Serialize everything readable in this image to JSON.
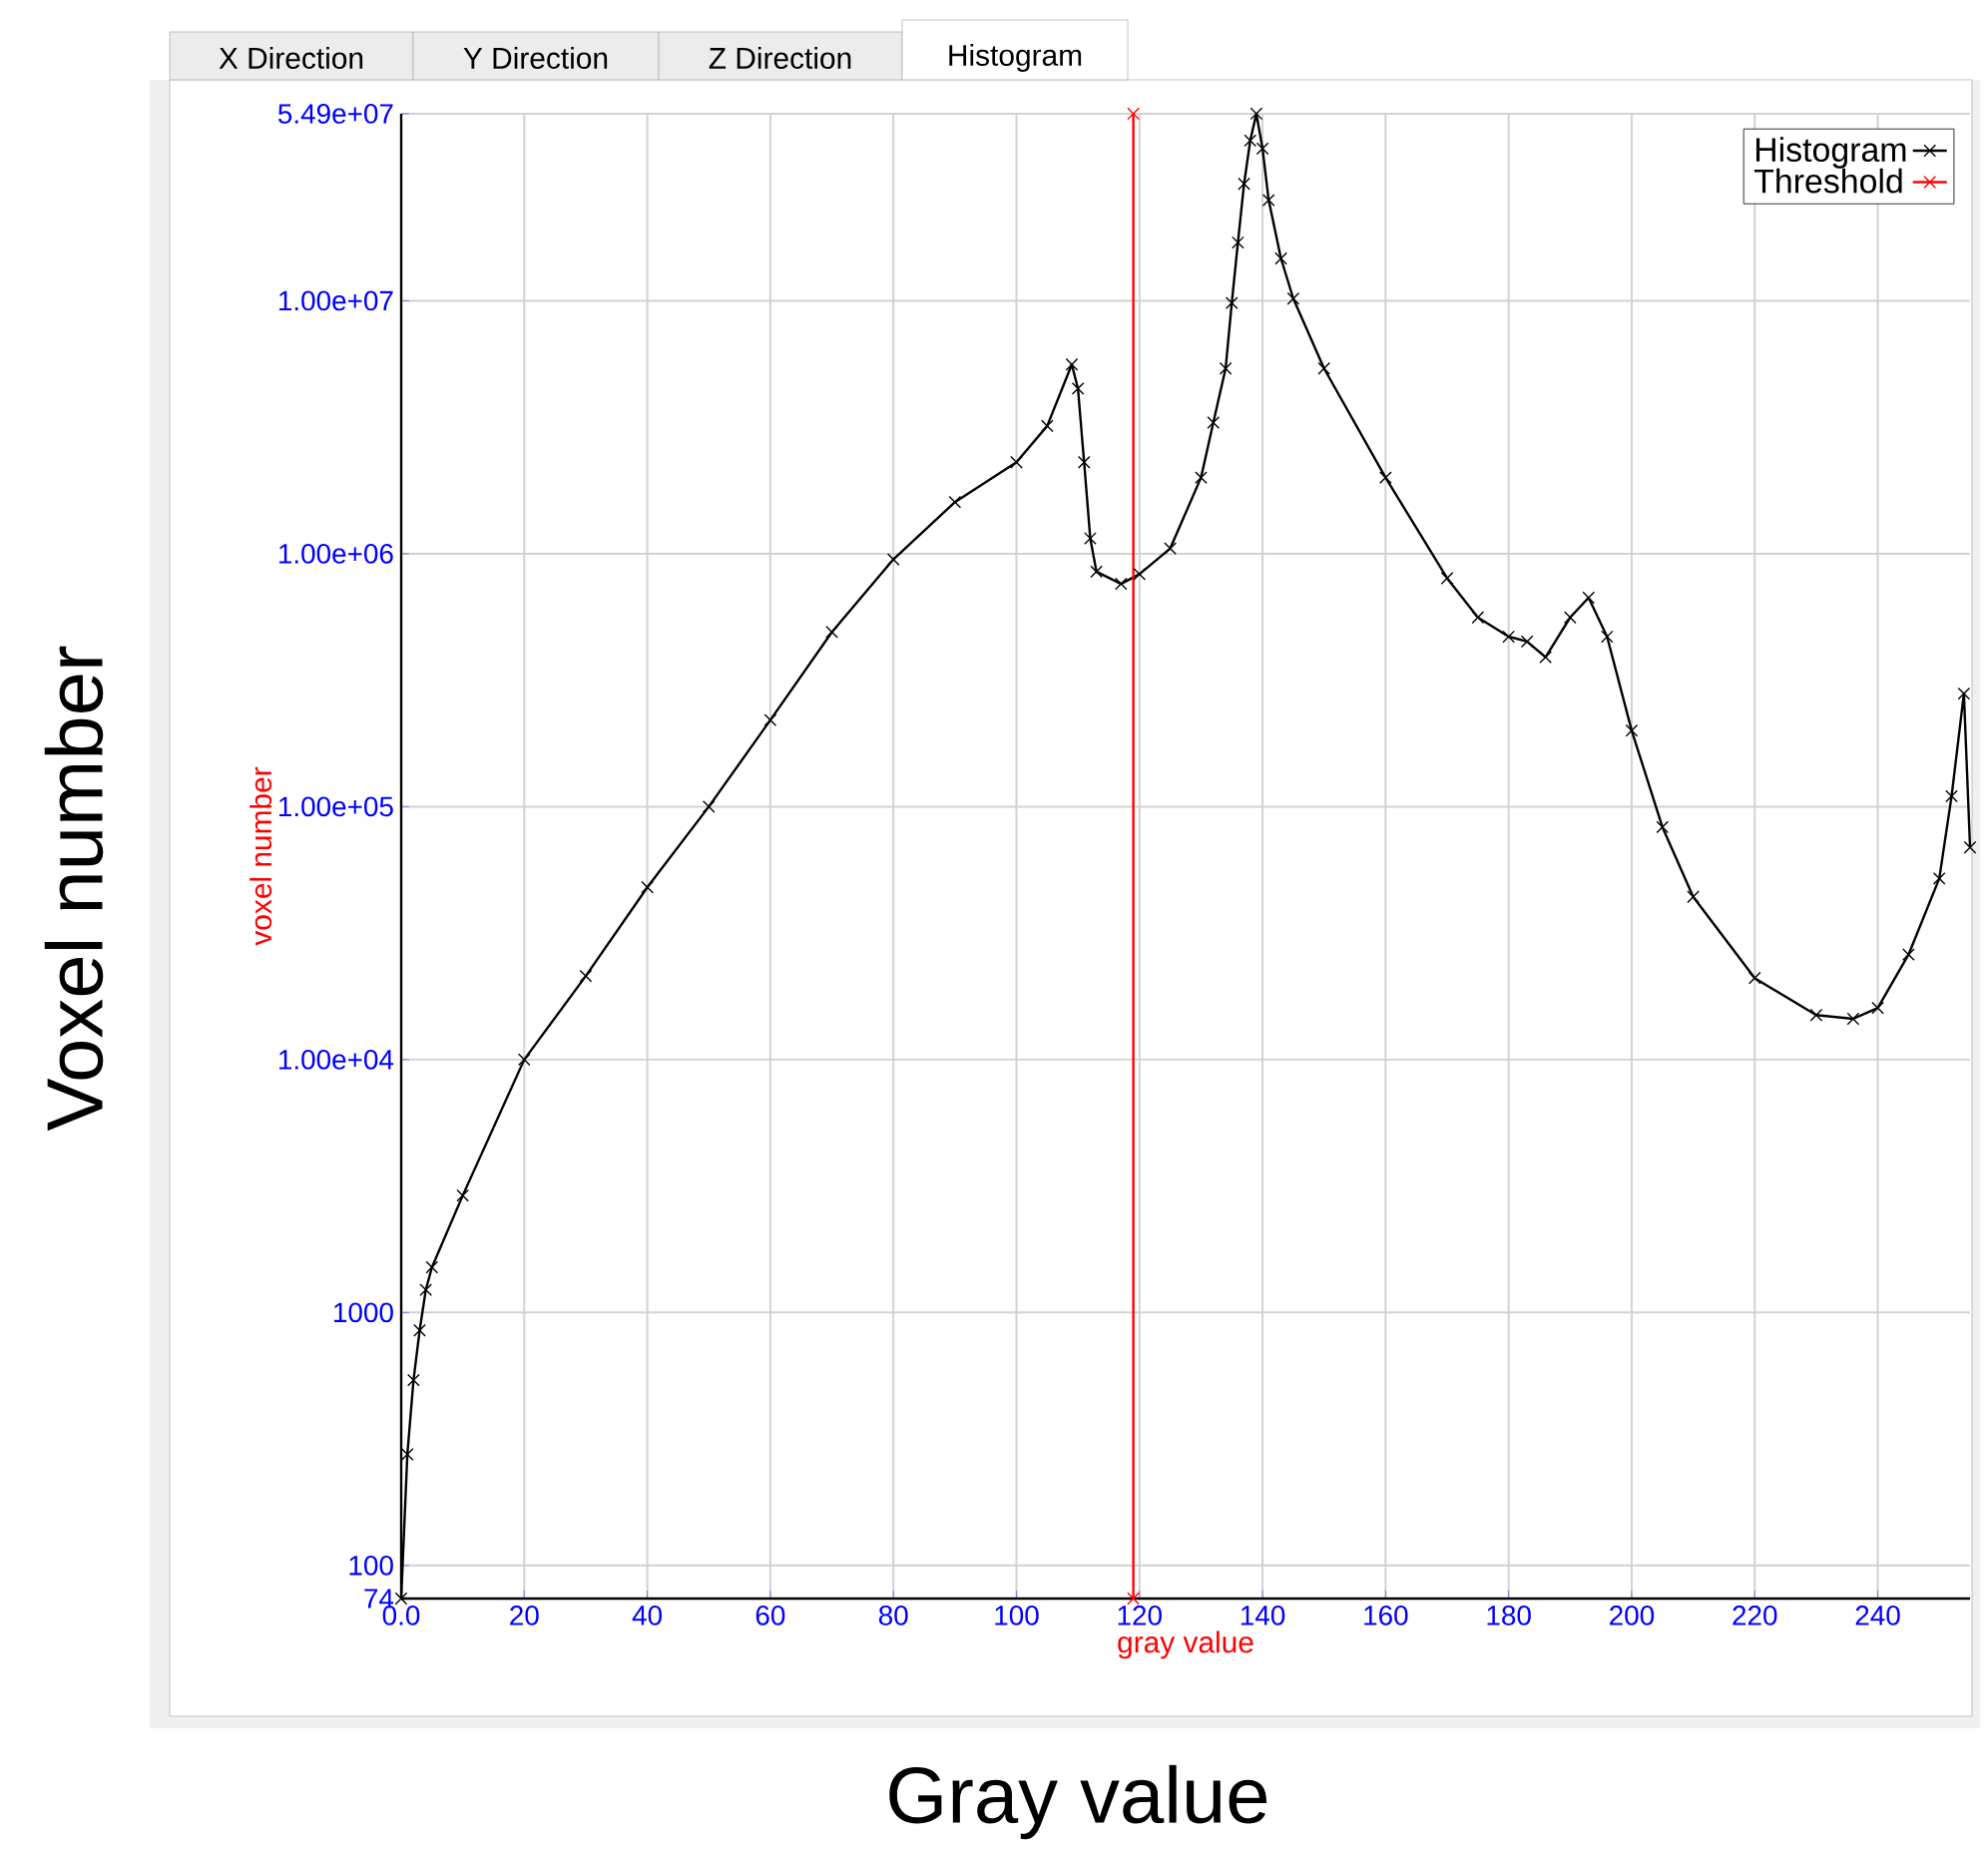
{
  "chart_data": {
    "type": "line",
    "xlabel": "gray value",
    "ylabel": "voxel number",
    "annotations": [
      "X Direction",
      "Y Direction",
      "Z Direction",
      "Histogram",
      "Gray value",
      "Voxel number"
    ],
    "log": "y",
    "grid": true,
    "legend": "top right",
    "marker": "cross",
    "line_style": "solid",
    "xlim": [
      0,
      255
    ],
    "ylim": [
      74,
      54900000
    ],
    "xticks": [
      {
        "value": 0,
        "label": "0.0"
      },
      20,
      40,
      60,
      80,
      100,
      120,
      140,
      160,
      180,
      200,
      220,
      240
    ],
    "yticks": [
      74,
      100,
      1000,
      {
        "value": 10000,
        "label": "1.00e+04"
      },
      {
        "value": 100000,
        "label": "1.00e+05"
      },
      {
        "value": 1000000,
        "label": "1.00e+06"
      },
      {
        "value": 10000000,
        "label": "1.00e+07"
      },
      {
        "value": 54900000,
        "label": "5.49e+07"
      }
    ],
    "series": [
      {
        "name": "Histogram",
        "color": "#000000",
        "x": [
          0,
          1,
          2,
          3,
          4,
          5,
          10,
          20,
          30,
          40,
          50,
          60,
          70,
          80,
          90,
          100,
          105,
          109,
          110,
          111,
          112,
          113,
          117,
          120,
          125,
          130,
          132,
          134,
          135,
          136,
          137,
          138,
          139,
          140,
          141,
          143,
          145,
          150,
          160,
          170,
          175,
          180,
          183,
          186,
          190,
          193,
          196,
          200,
          205,
          210,
          220,
          230,
          236,
          240,
          245,
          250,
          252,
          254,
          255
        ],
        "values": [
          74,
          275,
          540,
          850,
          1230,
          1510,
          2900,
          10000,
          21400,
          48000,
          100000,
          220000,
          490000,
          950000,
          1600000,
          2300000,
          3200000,
          5600000,
          4500000,
          2300000,
          1150000,
          850000,
          760000,
          830000,
          1050000,
          2000000,
          3300000,
          5400000,
          9800000,
          17000000,
          29000000,
          43000000,
          54900000,
          40000000,
          25000000,
          14700000,
          10200000,
          5400000,
          2000000,
          800000,
          560000,
          470000,
          450000,
          390000,
          560000,
          670000,
          470000,
          200000,
          83000,
          44000,
          21000,
          15000,
          14500,
          16000,
          26000,
          52000,
          110000,
          280000,
          69000
        ]
      },
      {
        "name": "Threshold",
        "color": "#ff0000",
        "x": [
          119,
          119
        ],
        "values": [
          74,
          54900000
        ]
      }
    ]
  }
}
